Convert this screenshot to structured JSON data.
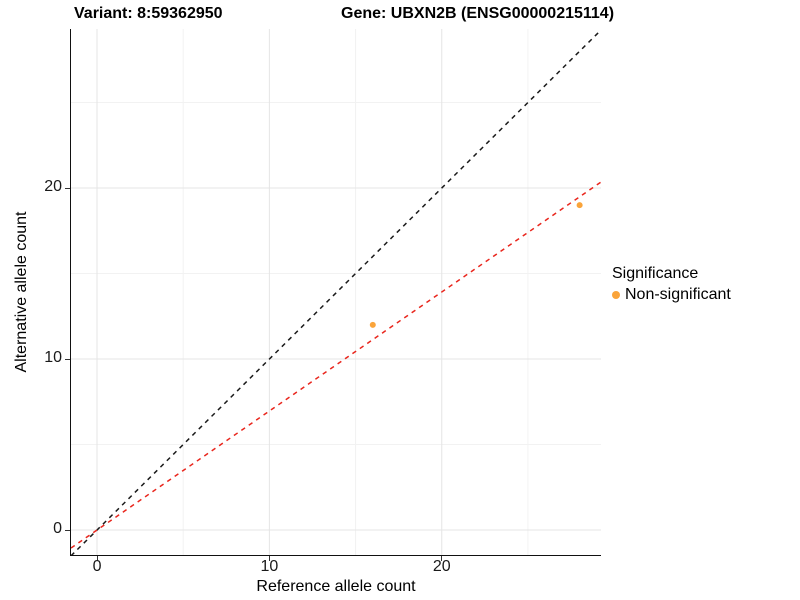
{
  "chart_data": {
    "type": "scatter",
    "title_left": "Variant: 8:59362950",
    "title_right": "Gene: UBXN2B (ENSG00000215114)",
    "xlabel": "Reference allele count",
    "ylabel": "Alternative allele count",
    "xlim": [
      -1.51,
      29.24
    ],
    "ylim": [
      -1.46,
      29.3
    ],
    "x_major_ticks": [
      0,
      10,
      20
    ],
    "y_major_ticks": [
      0,
      10,
      20
    ],
    "x_minor_gridlines": [
      5,
      15,
      25
    ],
    "y_minor_gridlines": [
      5,
      15,
      25
    ],
    "grid": true,
    "colors": {
      "point": "#FAA43A",
      "identity_line": "#1a1a1a",
      "fit_line": "#E9261D",
      "major_grid": "#E5E5E5",
      "minor_grid": "#F2F2F2"
    },
    "points": [
      {
        "x": 16,
        "y": 12,
        "series": "Non-significant"
      },
      {
        "x": 28,
        "y": 19,
        "series": "Non-significant"
      }
    ],
    "lines": [
      {
        "name": "identity",
        "slope": 1,
        "intercept": 0,
        "style": "dashed"
      },
      {
        "name": "fit",
        "slope": 0.696,
        "intercept": 0,
        "style": "dashed"
      }
    ],
    "legend": {
      "position": "right",
      "title": "Significance",
      "items": [
        {
          "label": "Non-significant",
          "color": "#FAA43A"
        }
      ]
    }
  }
}
